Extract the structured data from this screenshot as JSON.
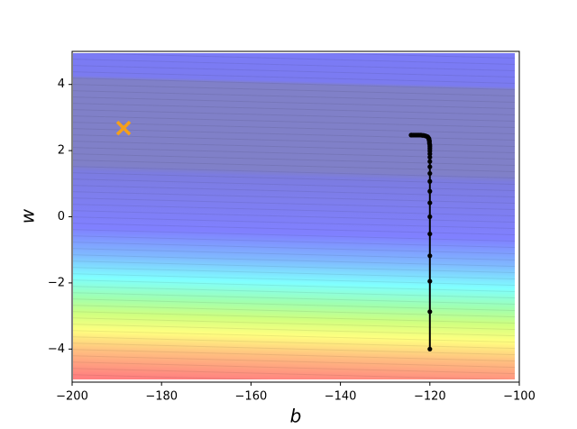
{
  "chart_data": {
    "type": "contour",
    "xlabel": "b",
    "ylabel": "w",
    "xlim": [
      -200,
      -100
    ],
    "ylim": [
      -5,
      5
    ],
    "xticks": [
      {
        "value": -200,
        "label": "−200"
      },
      {
        "value": -180,
        "label": "−180"
      },
      {
        "value": -160,
        "label": "−160"
      },
      {
        "value": -140,
        "label": "−140"
      },
      {
        "value": -120,
        "label": "−120"
      },
      {
        "value": -100,
        "label": "−100"
      }
    ],
    "yticks": [
      {
        "value": -4,
        "label": "−4"
      },
      {
        "value": -2,
        "label": "−2"
      },
      0,
      2,
      4
    ],
    "path": {
      "color": "#000000",
      "x": [
        -120,
        -120,
        -120,
        -120,
        -120,
        -120,
        -120,
        -120,
        -120,
        -120,
        -120,
        -120,
        -120,
        -120,
        -120,
        -120,
        -120,
        -120,
        -120.1,
        -120.1,
        -120.1,
        -120.2,
        -120.2,
        -120.3,
        -120.4,
        -120.5,
        -120.7,
        -120.9,
        -121.1,
        -121.4,
        -121.7,
        -122.0,
        -122.4,
        -122.8,
        -123.2,
        -123.6,
        -124.0,
        -124.2
      ],
      "y": [
        -4,
        -2.87,
        -1.95,
        -1.18,
        -0.52,
        0,
        0.42,
        0.77,
        1.07,
        1.31,
        1.51,
        1.67,
        1.8,
        1.9,
        1.99,
        2.06,
        2.12,
        2.17,
        2.22,
        2.26,
        2.3,
        2.33,
        2.36,
        2.38,
        2.4,
        2.42,
        2.43,
        2.44,
        2.45,
        2.46,
        2.46,
        2.47,
        2.47,
        2.47,
        2.47,
        2.47,
        2.47,
        2.47
      ]
    },
    "marker": {
      "color": "#f5a01a",
      "x": -188.5,
      "y": 2.68
    }
  }
}
